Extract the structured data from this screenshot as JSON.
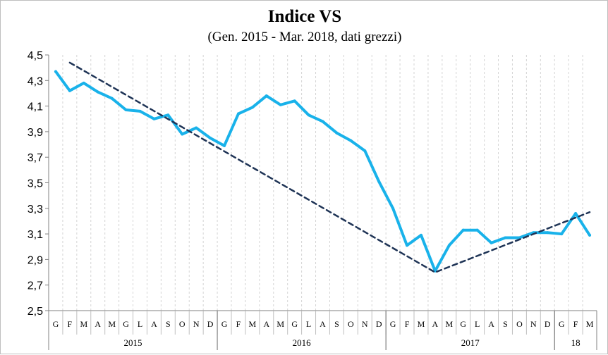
{
  "chart_data": {
    "type": "line",
    "title": "Indice VS",
    "subtitle": "(Gen. 2015 - Mar. 2018, dati grezzi)",
    "xlabel": "",
    "ylabel": "",
    "ylim": [
      2.5,
      4.5
    ],
    "yticks": [
      "2,5",
      "2,7",
      "2,9",
      "3,1",
      "3,3",
      "3,5",
      "3,7",
      "3,9",
      "4,1",
      "4,3",
      "4,5"
    ],
    "grid": "vertical-dashed",
    "legend": "none",
    "months": [
      "G",
      "F",
      "M",
      "A",
      "M",
      "G",
      "L",
      "A",
      "S",
      "O",
      "N",
      "D",
      "G",
      "F",
      "M",
      "A",
      "M",
      "G",
      "L",
      "A",
      "S",
      "O",
      "N",
      "D",
      "G",
      "F",
      "M",
      "A",
      "M",
      "G",
      "L",
      "A",
      "S",
      "O",
      "N",
      "D",
      "G",
      "F",
      "M"
    ],
    "years": [
      {
        "label": "2015",
        "start": 0,
        "end": 11
      },
      {
        "label": "2016",
        "start": 12,
        "end": 23
      },
      {
        "label": "2017",
        "start": 24,
        "end": 35
      },
      {
        "label": "18",
        "start": 36,
        "end": 38
      }
    ],
    "series": [
      {
        "color": "#19b2ea",
        "style": "solid",
        "values": [
          4.37,
          4.22,
          4.28,
          4.21,
          4.16,
          4.07,
          4.06,
          4.0,
          4.03,
          3.88,
          3.93,
          3.85,
          3.79,
          4.04,
          4.09,
          4.18,
          4.11,
          4.14,
          4.03,
          3.98,
          3.89,
          3.83,
          3.75,
          3.51,
          3.3,
          3.01,
          3.09,
          2.81,
          3.01,
          3.13,
          3.13,
          3.03,
          3.07,
          3.07,
          3.11,
          3.11,
          3.1,
          3.26,
          3.09
        ]
      },
      {
        "color": "#1f3456",
        "style": "dashed",
        "x": [
          1,
          27,
          38
        ],
        "values": [
          4.44,
          2.8,
          3.27
        ]
      }
    ]
  }
}
